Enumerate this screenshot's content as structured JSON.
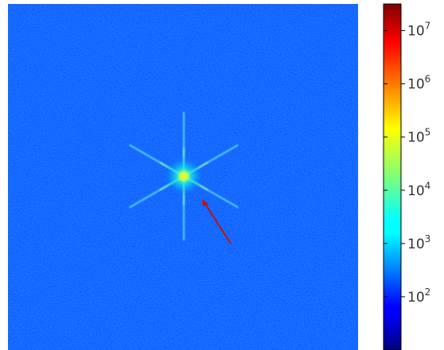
{
  "chart_data": {
    "type": "heatmap",
    "title": "",
    "xlabel": "",
    "ylabel": "",
    "colormap": "jet",
    "color_scale": "log",
    "colorbar": {
      "range": [
        10,
        31622776
      ],
      "ticks": [
        {
          "value": 100,
          "base": "10",
          "exp": "2"
        },
        {
          "value": 1000,
          "base": "10",
          "exp": "3"
        },
        {
          "value": 10000,
          "base": "10",
          "exp": "4"
        },
        {
          "value": 100000,
          "base": "10",
          "exp": "5"
        },
        {
          "value": 1000000,
          "base": "10",
          "exp": "6"
        },
        {
          "value": 10000000,
          "base": "10",
          "exp": "7"
        }
      ]
    },
    "background_level": 1000,
    "peak_level": 100000,
    "image_description_features": {
      "central_peak": true,
      "spike_angles_deg": [
        90,
        30,
        150
      ]
    },
    "annotations": [
      {
        "type": "arrow",
        "color": "#c01010"
      }
    ]
  }
}
